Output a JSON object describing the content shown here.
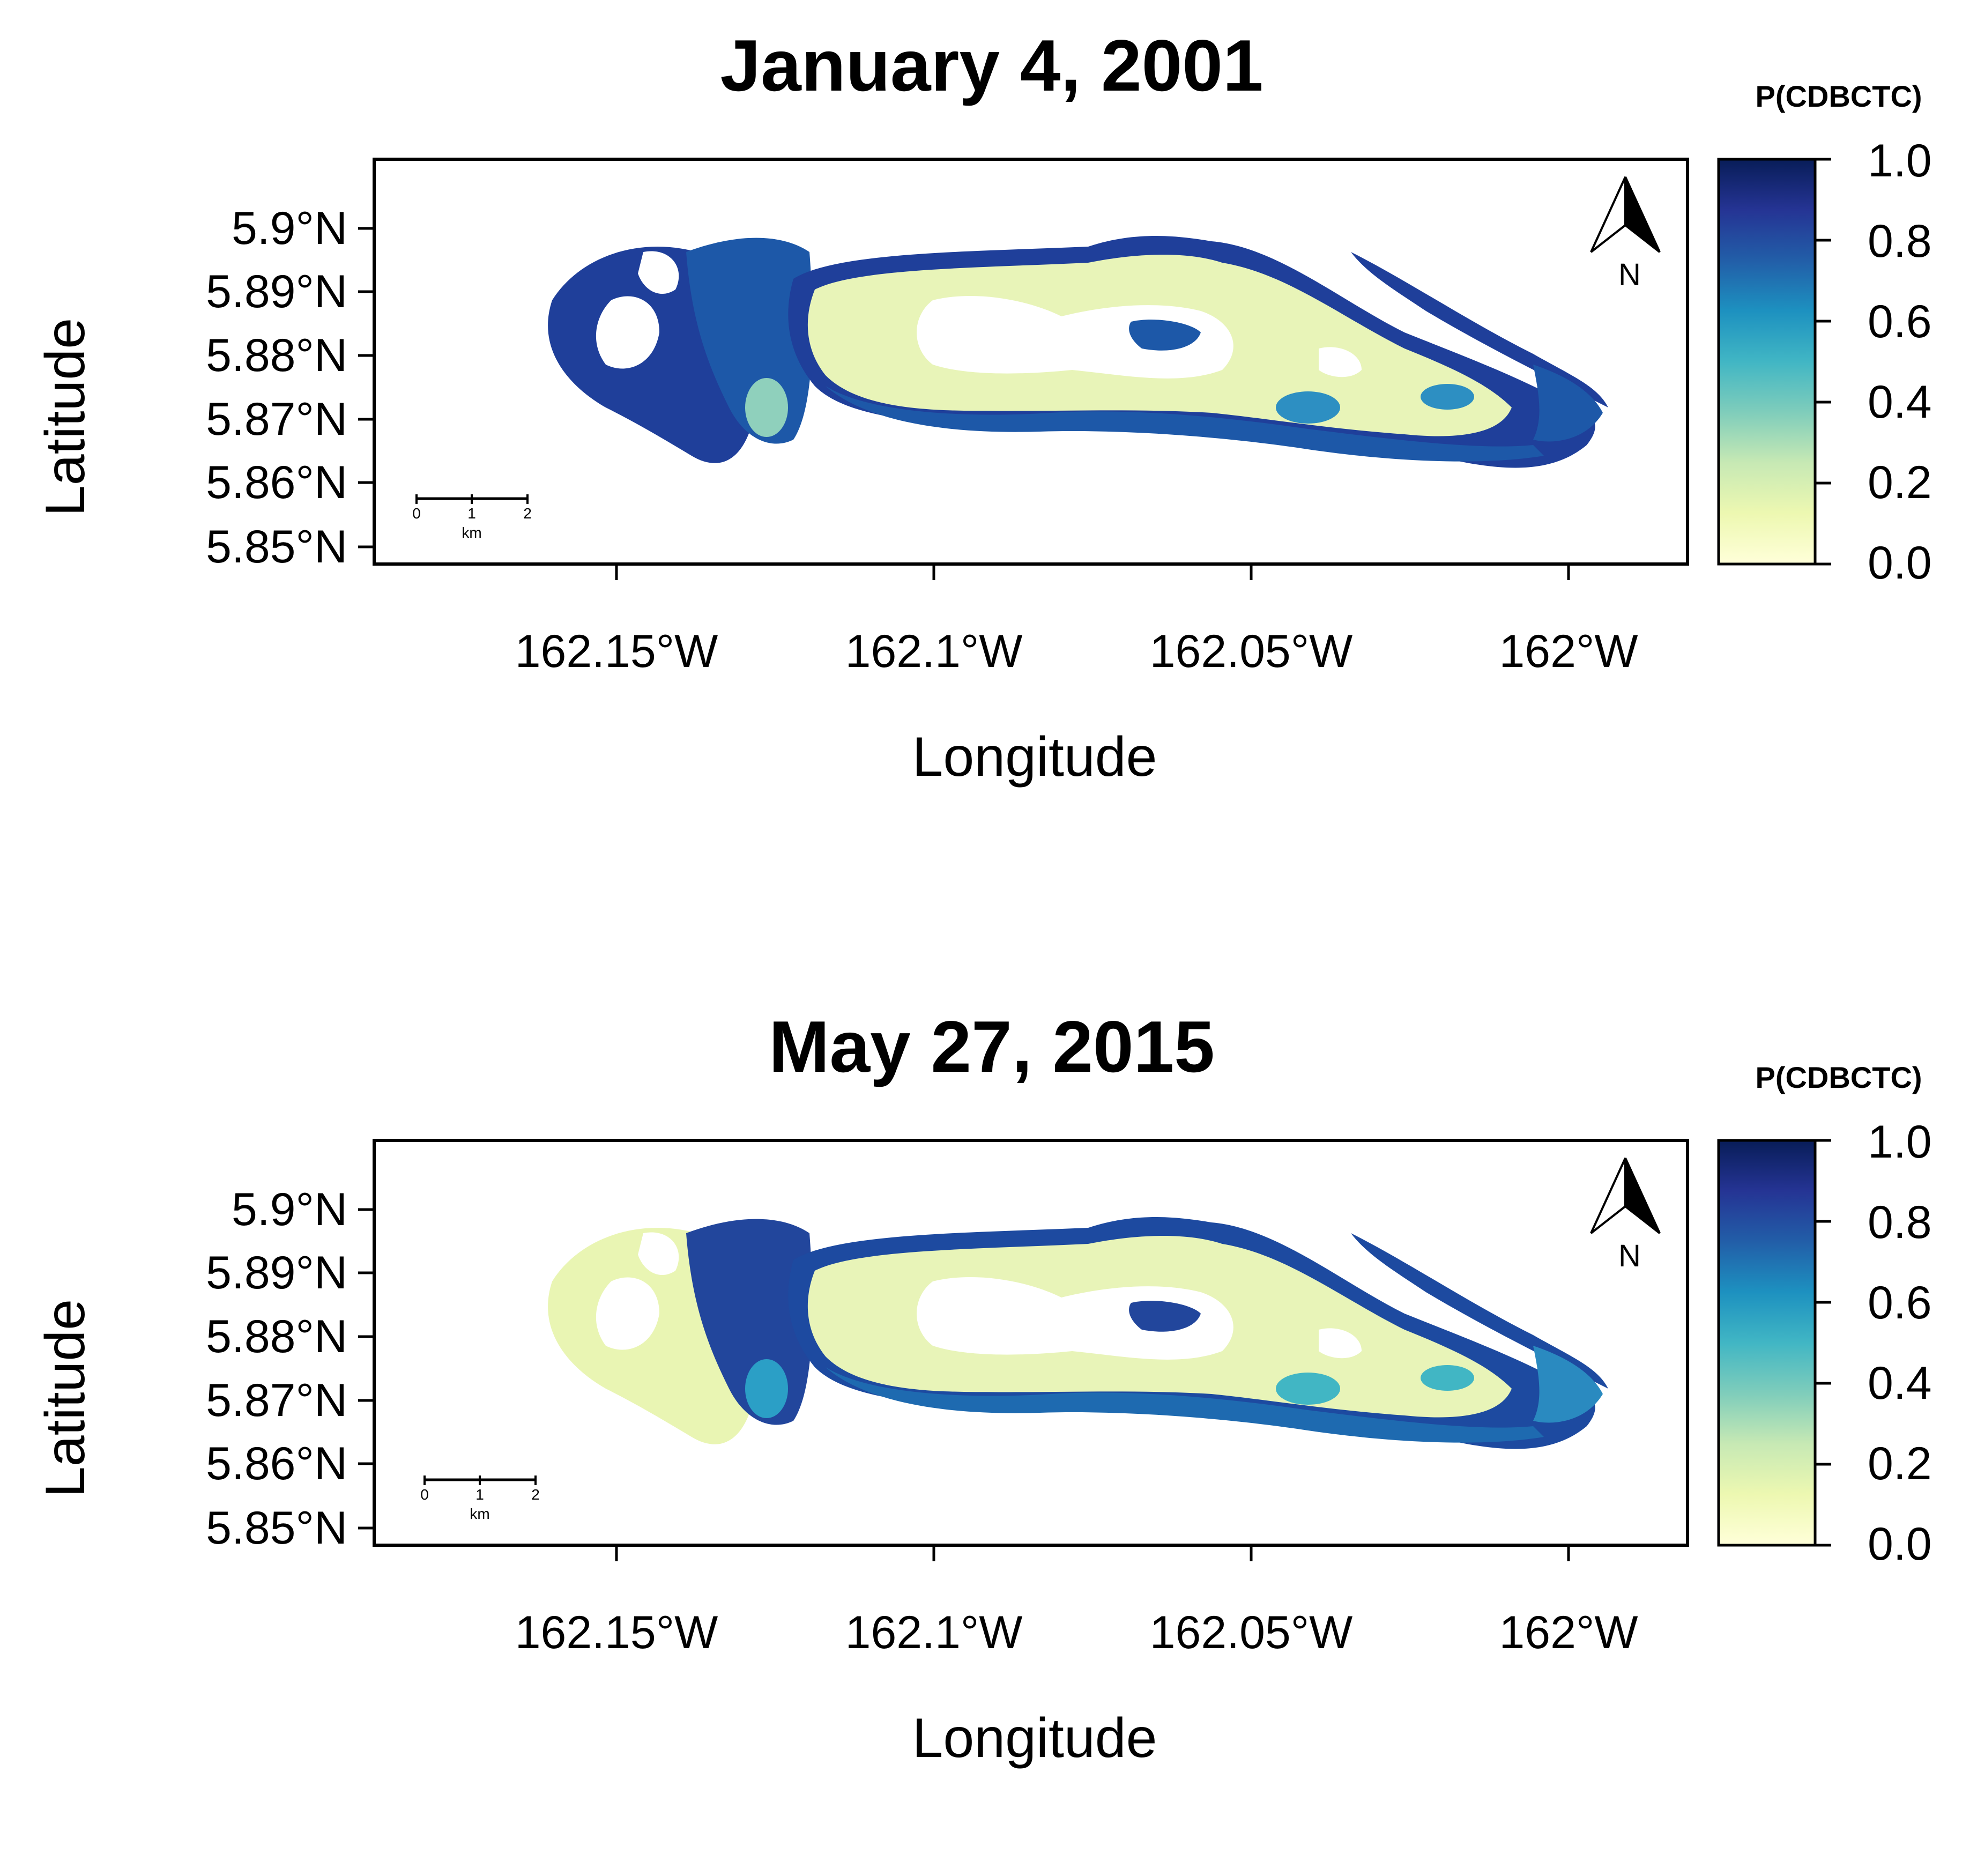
{
  "colorbar": {
    "title": "P(CDBCTC)",
    "ticks": [
      "0.0",
      "0.2",
      "0.4",
      "0.6",
      "0.8",
      "1.0"
    ],
    "gradient": [
      "#ffffd9",
      "#edf8b1",
      "#c7e9b4",
      "#7fcdbb",
      "#41b6c4",
      "#1d91c0",
      "#225ea8",
      "#253494",
      "#081d58"
    ]
  },
  "axes": {
    "xlabel": "Longitude",
    "ylabel": "Latitude",
    "xticks": [
      "162.15°W",
      "162.1°W",
      "162.05°W",
      "162°W"
    ],
    "yticks": [
      "5.9°N",
      "5.89°N",
      "5.88°N",
      "5.87°N",
      "5.86°N",
      "5.85°N"
    ]
  },
  "scalebar": {
    "labels": [
      "0",
      "1",
      "2"
    ],
    "unit": "km"
  },
  "compass": {
    "label": "N"
  },
  "panels": [
    {
      "title": "January 4, 2001"
    },
    {
      "title": "May 27, 2015"
    }
  ],
  "chart_data": [
    {
      "type": "heatmap",
      "title": "January 4, 2001",
      "xlabel": "Longitude",
      "ylabel": "Latitude",
      "xticks": [
        "162.15°W",
        "162.1°W",
        "162.05°W",
        "162°W"
      ],
      "yticks": [
        "5.9°N",
        "5.89°N",
        "5.88°N",
        "5.87°N",
        "5.86°N",
        "5.85°N"
      ],
      "colorbar_title": "P(CDBCTC)",
      "colorbar_range": [
        0.0,
        1.0
      ],
      "colors": {
        "west_lobe": "#1f3f9a",
        "west_mid": "#1d58a8",
        "lagoon_interior": "#e8f4b8",
        "north_rim": "#1f3f9a",
        "south_rim": "#1d58a8",
        "east_tip": "#1d58a8",
        "east_patches": "#2d8fc2",
        "west_light_patches": "#8fd0bc"
      }
    },
    {
      "type": "heatmap",
      "title": "May 27, 2015",
      "xlabel": "Longitude",
      "ylabel": "Latitude",
      "xticks": [
        "162.15°W",
        "162.1°W",
        "162.05°W",
        "162°W"
      ],
      "yticks": [
        "5.9°N",
        "5.89°N",
        "5.88°N",
        "5.87°N",
        "5.86°N",
        "5.85°N"
      ],
      "colorbar_title": "P(CDBCTC)",
      "colorbar_range": [
        0.0,
        1.0
      ],
      "colors": {
        "west_lobe": "#e9f5b3",
        "west_mid": "#22469c",
        "lagoon_interior": "#e8f4b8",
        "north_rim": "#1d4aa0",
        "south_rim": "#1e6ab0",
        "east_tip": "#2a8ac0",
        "east_patches": "#41b6c4",
        "west_light_patches": "#2b9fc6"
      }
    }
  ]
}
